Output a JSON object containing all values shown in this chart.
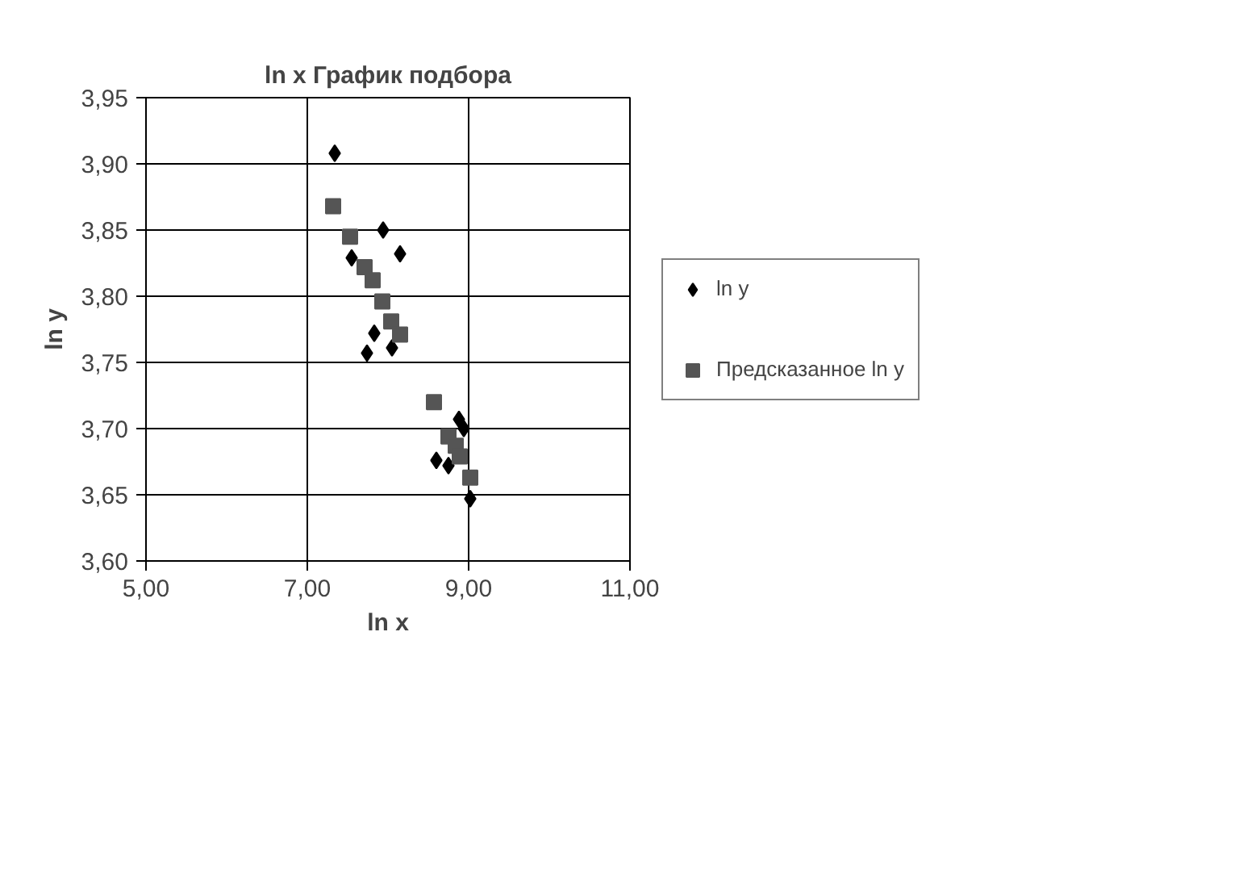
{
  "chart_data": {
    "type": "scatter",
    "title": "ln x График подбора",
    "xlabel": "ln x",
    "ylabel": "ln y",
    "xlim": [
      5,
      11
    ],
    "ylim": [
      3.6,
      3.95
    ],
    "xticks": [
      {
        "value": 5,
        "label": "5,00"
      },
      {
        "value": 7,
        "label": "7,00"
      },
      {
        "value": 9,
        "label": "9,00"
      },
      {
        "value": 11,
        "label": "11,00"
      }
    ],
    "yticks": [
      {
        "value": 3.6,
        "label": "3,60"
      },
      {
        "value": 3.65,
        "label": "3,65"
      },
      {
        "value": 3.7,
        "label": "3,70"
      },
      {
        "value": 3.75,
        "label": "3,75"
      },
      {
        "value": 3.8,
        "label": "3,80"
      },
      {
        "value": 3.85,
        "label": "3,85"
      },
      {
        "value": 3.9,
        "label": "3,90"
      },
      {
        "value": 3.95,
        "label": "3,95"
      }
    ],
    "grid": true,
    "legend": "right",
    "series": [
      {
        "name": "ln y",
        "color": "#000000",
        "marker": "diamond",
        "x": [
          7.34,
          7.94,
          8.15,
          7.55,
          7.83,
          7.74,
          8.05,
          8.88,
          8.94,
          8.6,
          8.75,
          9.02
        ],
        "values": [
          3.908,
          3.85,
          3.832,
          3.829,
          3.772,
          3.757,
          3.761,
          3.707,
          3.7,
          3.676,
          3.672,
          3.647
        ]
      },
      {
        "name": "Предсказанное ln y",
        "color": "#555555",
        "marker": "square",
        "x": [
          7.32,
          7.53,
          7.71,
          7.81,
          7.93,
          8.04,
          8.15,
          8.57,
          8.75,
          8.84,
          8.89,
          9.02
        ],
        "values": [
          3.868,
          3.845,
          3.822,
          3.812,
          3.796,
          3.781,
          3.771,
          3.72,
          3.694,
          3.687,
          3.679,
          3.663
        ]
      }
    ]
  }
}
